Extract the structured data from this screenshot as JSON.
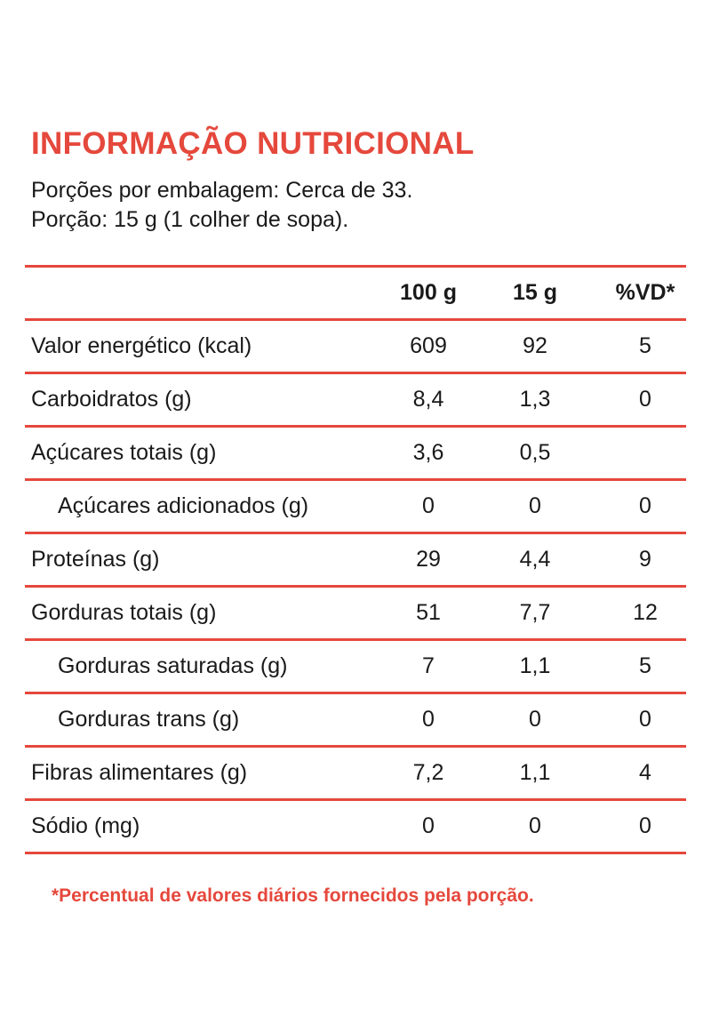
{
  "title": "INFORMAÇÃO NUTRICIONAL",
  "servings_per_package": "Porções por embalagem: Cerca de 33.",
  "serving_size": "Porção: 15 g (1 colher de sopa).",
  "columns": [
    "100 g",
    "15 g",
    "%VD*"
  ],
  "rows": [
    {
      "label": "Valor energético (kcal)",
      "v100": "609",
      "v15": "92",
      "vd": "5"
    },
    {
      "label": "Carboidratos (g)",
      "v100": "8,4",
      "v15": "1,3",
      "vd": "0"
    },
    {
      "label": "Açúcares totais (g)",
      "v100": "3,6",
      "v15": "0,5",
      "vd": ""
    },
    {
      "label": "Açúcares adicionados (g)",
      "v100": "0",
      "v15": "0",
      "vd": "0"
    },
    {
      "label": "Proteínas (g)",
      "v100": "29",
      "v15": "4,4",
      "vd": "9"
    },
    {
      "label": "Gorduras totais (g)",
      "v100": "51",
      "v15": "7,7",
      "vd": "12"
    },
    {
      "label": "Gorduras saturadas (g)",
      "v100": "7",
      "v15": "1,1",
      "vd": "5"
    },
    {
      "label": "Gorduras trans (g)",
      "v100": "0",
      "v15": "0",
      "vd": "0"
    },
    {
      "label": "Fibras alimentares (g)",
      "v100": "7,2",
      "v15": "1,1",
      "vd": "4"
    },
    {
      "label": "Sódio (mg)",
      "v100": "0",
      "v15": "0",
      "vd": "0"
    }
  ],
  "footnote": "*Percentual de valores diários fornecidos pela porção.",
  "colors": {
    "accent": "#e5483c",
    "text": "#1a1a1a"
  }
}
